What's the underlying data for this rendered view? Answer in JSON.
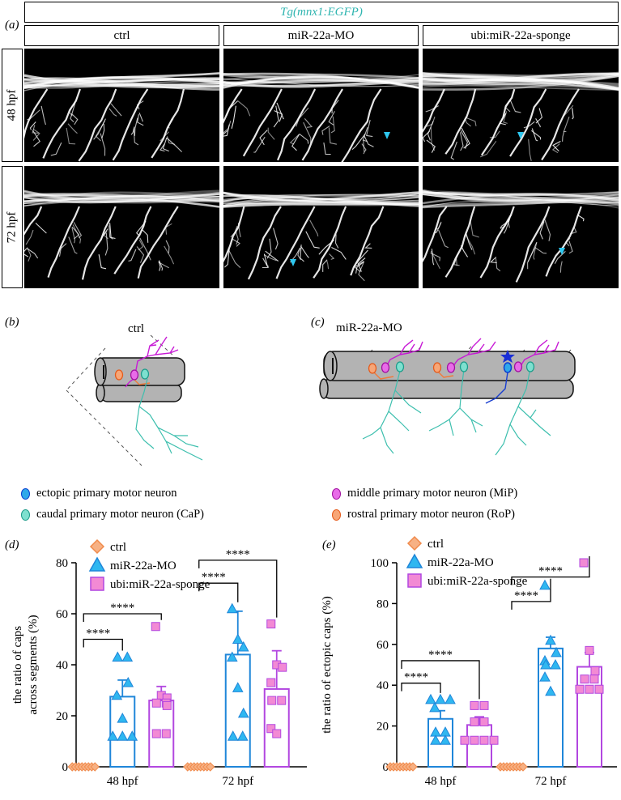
{
  "panel_a": {
    "letter": "(a)",
    "title_prefix": "Tg(",
    "title_gene": "mnx1:EGFP",
    "title_suffix": ")",
    "columns": [
      "ctrl",
      "miR-22a-MO",
      "ubi:miR-22a-sponge"
    ],
    "rows": [
      "48 hpf",
      "72 hpf"
    ]
  },
  "panel_b": {
    "letter": "(b)",
    "title": "ctrl"
  },
  "panel_c": {
    "letter": "(c)",
    "title": "miR-22a-MO"
  },
  "legend_neurons": [
    {
      "label": "ectopic primary motor neuron",
      "color": "#1aa6e0"
    },
    {
      "label": "middle primary motor neuron (MiP)",
      "color": "#d01ad9"
    },
    {
      "label": "caudal primary motor neuron (CaP)",
      "color": "#3dbfae"
    },
    {
      "label": "rostral primary motor neuron (RoP)",
      "color": "#f07a3a"
    }
  ],
  "legend_groups": [
    {
      "label": "ctrl",
      "color": "#f08a4b",
      "fill": "#f7b184",
      "shape": "diamond"
    },
    {
      "label": "miR-22a-MO",
      "color": "#1f86d9",
      "fill": "#2fb7f0",
      "shape": "triangle"
    },
    {
      "label": "ubi:miR-22a-sponge",
      "color": "#b247e0",
      "fill": "#f28ad4",
      "shape": "square"
    }
  ],
  "chart_data": [
    {
      "panel": "(d)",
      "type": "bar",
      "ylabel": "the ratio of caps across segments (%)",
      "ylabel_line1": "the ratio of caps",
      "ylabel_line2": "across segments (%)",
      "ylim": [
        0,
        80
      ],
      "yticks": [
        0,
        20,
        40,
        60,
        80
      ],
      "categories": [
        "48 hpf",
        "72 hpf"
      ],
      "series": [
        {
          "name": "ctrl",
          "values": [
            0,
            0
          ],
          "err": [
            0,
            0
          ],
          "points": [
            [
              0,
              0,
              0,
              0,
              0,
              0,
              0,
              0
            ],
            [
              0,
              0,
              0,
              0,
              0,
              0,
              0,
              0
            ]
          ]
        },
        {
          "name": "miR-22a-MO",
          "values": [
            27.5,
            44
          ],
          "err": [
            6.5,
            17
          ],
          "points": [
            [
              43,
              43,
              33,
              28,
              19,
              12,
              12,
              12
            ],
            [
              62,
              50,
              47,
              43,
              31,
              21,
              12,
              12
            ]
          ]
        },
        {
          "name": "ubi:miR-22a-sponge",
          "values": [
            26,
            30.5
          ],
          "err": [
            5.5,
            15
          ],
          "points": [
            [
              55,
              28,
              27,
              25,
              25,
              24,
              13,
              13
            ],
            [
              56,
              40,
              39,
              33,
              26,
              26,
              15,
              13
            ]
          ]
        }
      ],
      "significance": [
        {
          "category": "48 hpf",
          "label": "****"
        },
        {
          "category": "48 hpf",
          "label": "****"
        },
        {
          "category": "72 hpf",
          "label": "****"
        },
        {
          "category": "72 hpf",
          "label": "****"
        }
      ]
    },
    {
      "panel": "(e)",
      "type": "bar",
      "ylabel": "the ratio of ectopic caps (%)",
      "ylim": [
        0,
        100
      ],
      "yticks": [
        0,
        20,
        40,
        60,
        80,
        100
      ],
      "categories": [
        "48 hpf",
        "72 hpf"
      ],
      "series": [
        {
          "name": "ctrl",
          "values": [
            0,
            0
          ],
          "err": [
            0,
            0
          ],
          "points": [
            [
              0,
              0,
              0,
              0,
              0,
              0,
              0,
              0
            ],
            [
              0,
              0,
              0,
              0,
              0,
              0,
              0,
              0
            ]
          ]
        },
        {
          "name": "miR-22a-MO",
          "values": [
            23.5,
            58
          ],
          "err": [
            4,
            5.5
          ],
          "points": [
            [
              33,
              33,
              33,
              29,
              17,
              17,
              13,
              13
            ],
            [
              89,
              62,
              56,
              52,
              50,
              50,
              44,
              37
            ]
          ]
        },
        {
          "name": "ubi:miR-22a-sponge",
          "values": [
            20.5,
            49
          ],
          "err": [
            4,
            7
          ],
          "points": [
            [
              30,
              30,
              22,
              22,
              13,
              13,
              13,
              13
            ],
            [
              100,
              57,
              47,
              43,
              43,
              38,
              38,
              38
            ]
          ]
        }
      ],
      "significance": [
        {
          "category": "48 hpf",
          "label": "****"
        },
        {
          "category": "48 hpf",
          "label": "****"
        },
        {
          "category": "72 hpf",
          "label": "****"
        },
        {
          "category": "72 hpf",
          "label": "****"
        }
      ]
    }
  ]
}
